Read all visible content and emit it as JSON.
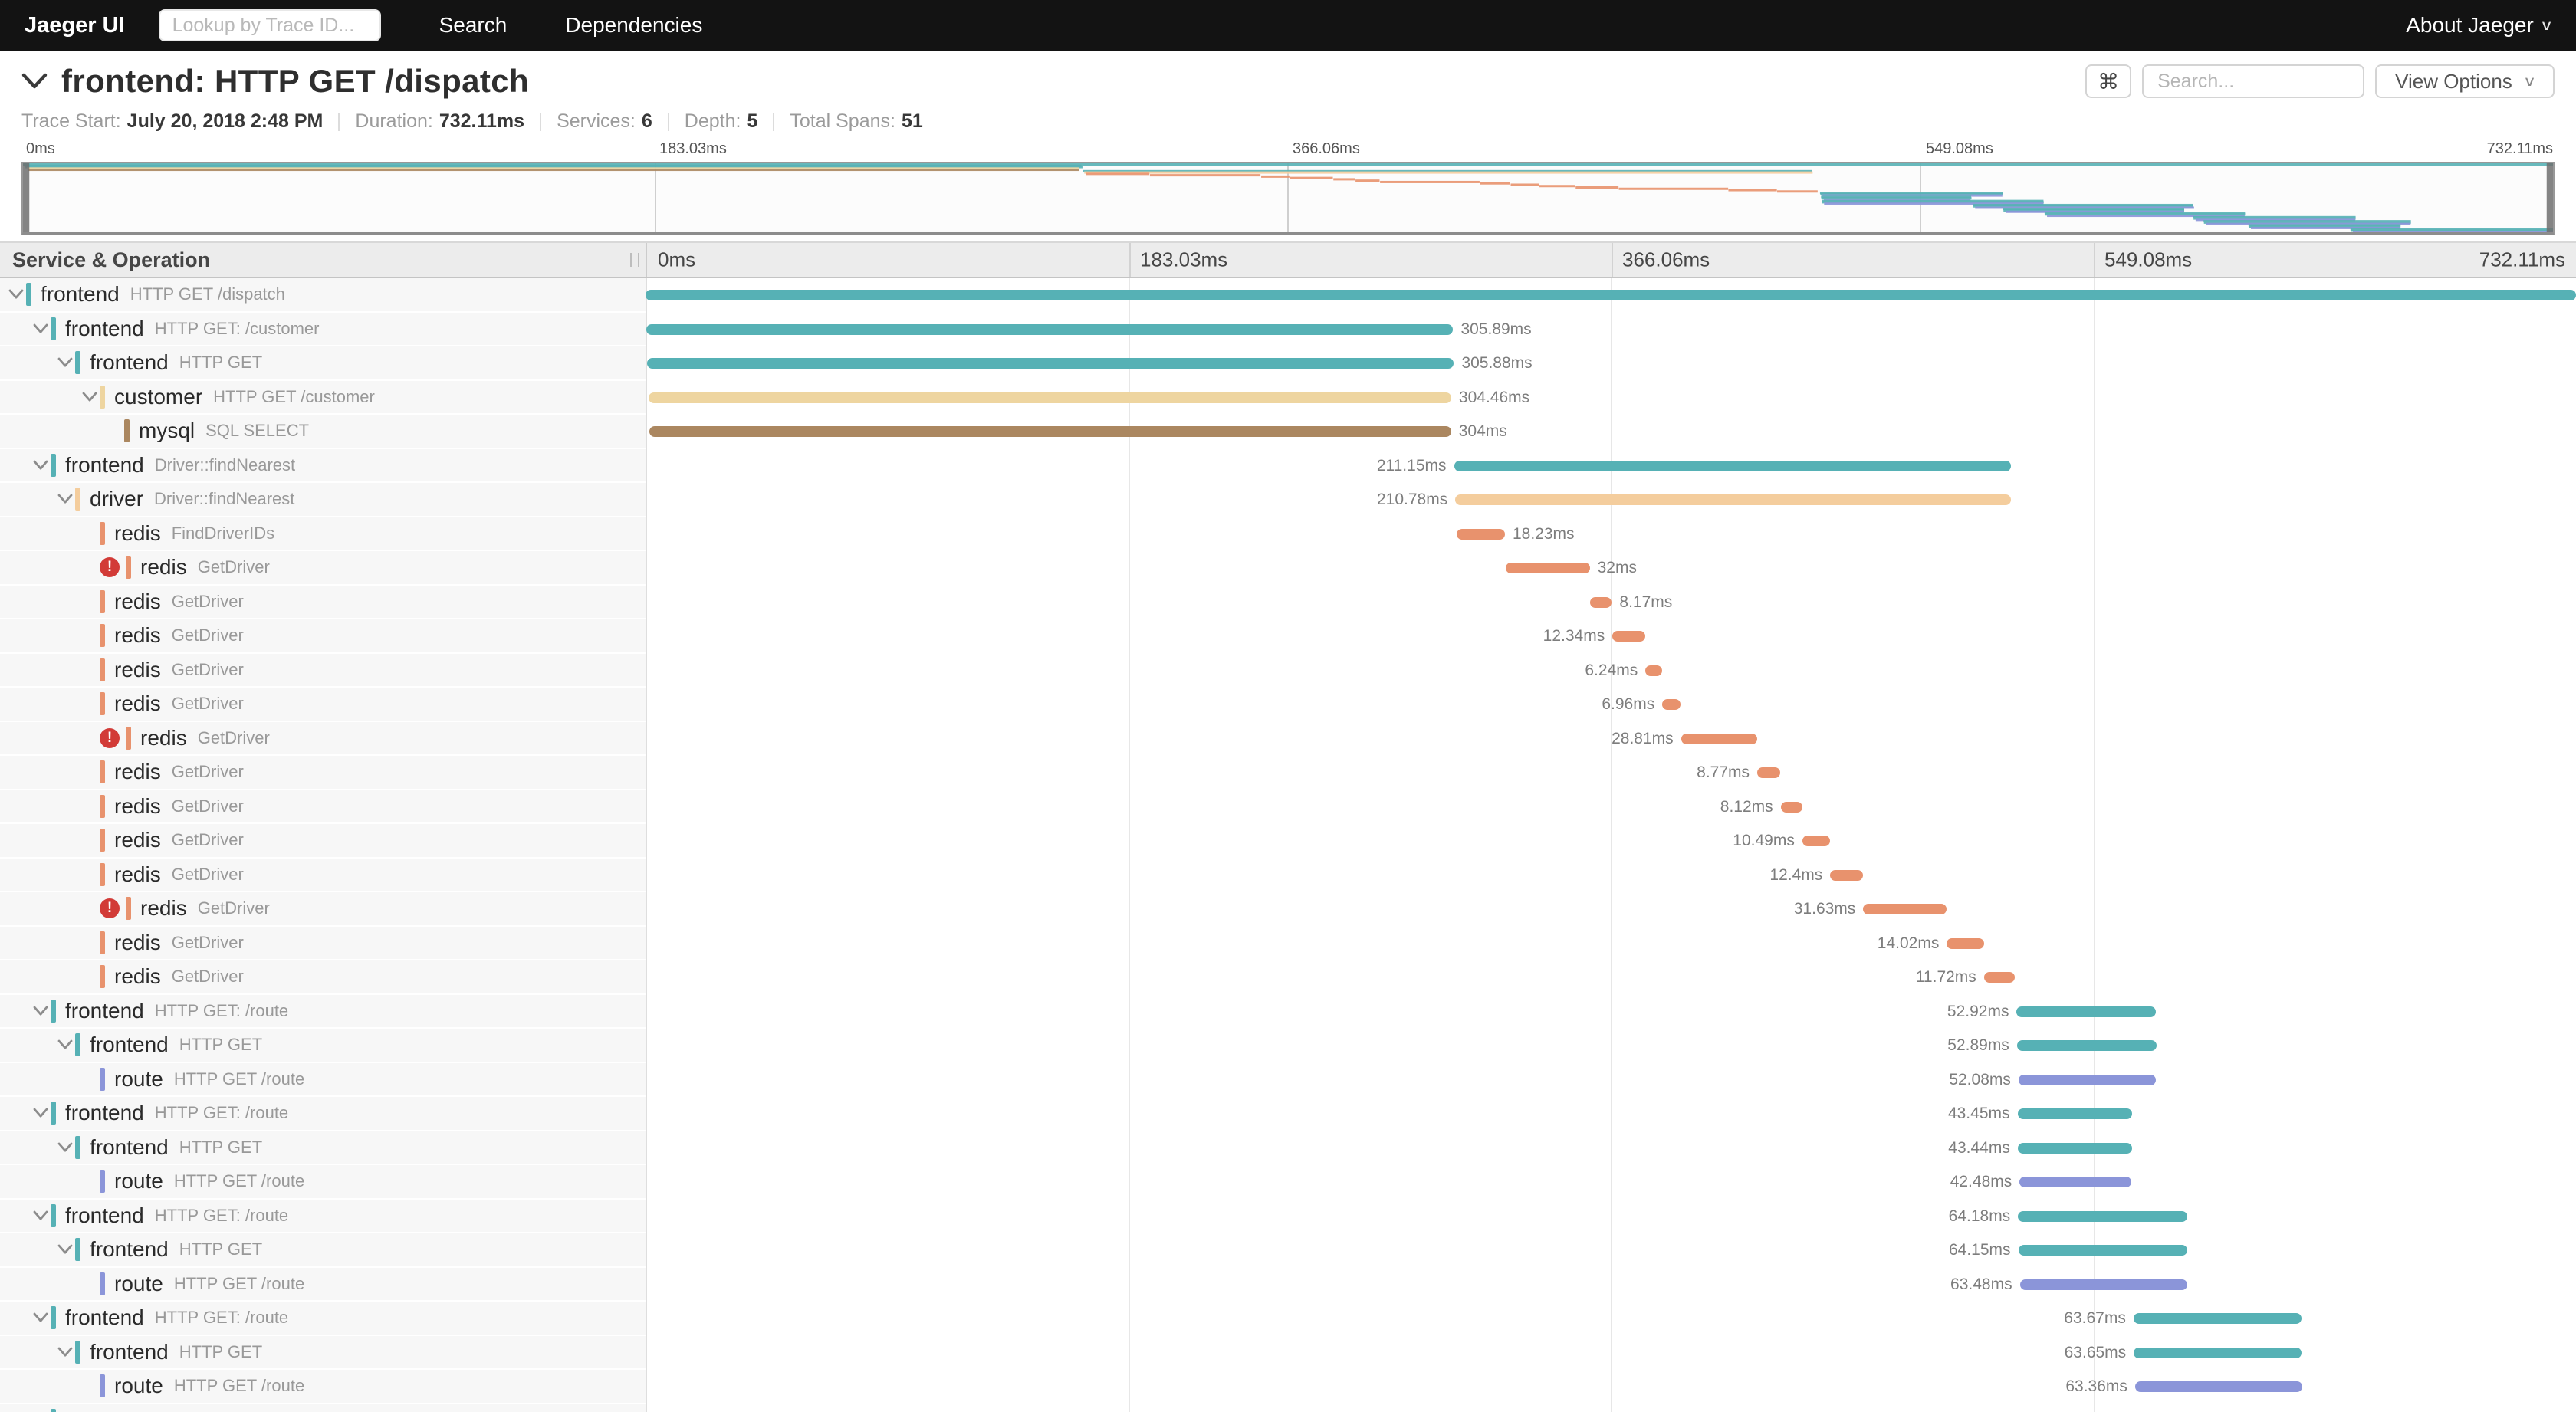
{
  "nav": {
    "brand": "Jaeger UI",
    "trace_lookup_placeholder": "Lookup by Trace ID...",
    "links": [
      "Search",
      "Dependencies"
    ],
    "about": "About Jaeger"
  },
  "header": {
    "title": "frontend: HTTP GET /dispatch",
    "shortcut_glyph": "⌘",
    "search_placeholder": "Search...",
    "view_options_label": "View Options",
    "summary": [
      {
        "label": "Trace Start:",
        "value": "July 20, 2018 2:48 PM"
      },
      {
        "label": "Duration:",
        "value": "732.11ms"
      },
      {
        "label": "Services:",
        "value": "6"
      },
      {
        "label": "Depth:",
        "value": "5"
      },
      {
        "label": "Total Spans:",
        "value": "51"
      }
    ]
  },
  "colors": {
    "frontend": "#56b1b5",
    "customer": "#eed5a0",
    "mysql": "#ab8760",
    "driver": "#f4cd9d",
    "redis": "#e8926d",
    "route": "#8b95d9",
    "error_red": "#d23b37",
    "nav_bg": "#131313",
    "header_bg": "#ececec",
    "name_col_bg": "#f7f7f7"
  },
  "chart_data": {
    "type": "gantt-trace",
    "title": "frontend: HTTP GET /dispatch",
    "total_duration_ms": 732.11,
    "axis_ticks": [
      "0ms",
      "183.03ms",
      "366.06ms",
      "549.08ms",
      "732.11ms"
    ],
    "column_header": "Service & Operation",
    "spans": [
      {
        "service": "frontend",
        "operation": "HTTP GET /dispatch",
        "depth": 0,
        "has_children": true,
        "error": false,
        "color": "#56b1b5",
        "start_ms": 0,
        "duration_ms": 732.11,
        "duration_label": "",
        "label_side": "none"
      },
      {
        "service": "frontend",
        "operation": "HTTP GET: /customer",
        "depth": 1,
        "has_children": true,
        "error": false,
        "color": "#56b1b5",
        "start_ms": 0.4,
        "duration_ms": 305.89,
        "duration_label": "305.89ms",
        "label_side": "right"
      },
      {
        "service": "frontend",
        "operation": "HTTP GET",
        "depth": 2,
        "has_children": true,
        "error": false,
        "color": "#56b1b5",
        "start_ms": 0.7,
        "duration_ms": 305.88,
        "duration_label": "305.88ms",
        "label_side": "right"
      },
      {
        "service": "customer",
        "operation": "HTTP GET /customer",
        "depth": 3,
        "has_children": true,
        "error": false,
        "color": "#eed5a0",
        "start_ms": 1.1,
        "duration_ms": 304.46,
        "duration_label": "304.46ms",
        "label_side": "right"
      },
      {
        "service": "mysql",
        "operation": "SQL SELECT",
        "depth": 4,
        "has_children": false,
        "error": false,
        "color": "#ab8760",
        "start_ms": 1.5,
        "duration_ms": 304,
        "duration_label": "304ms",
        "label_side": "right"
      },
      {
        "service": "frontend",
        "operation": "Driver::findNearest",
        "depth": 1,
        "has_children": true,
        "error": false,
        "color": "#56b1b5",
        "start_ms": 306.6,
        "duration_ms": 211.15,
        "duration_label": "211.15ms",
        "label_side": "left"
      },
      {
        "service": "driver",
        "operation": "Driver::findNearest",
        "depth": 2,
        "has_children": true,
        "error": false,
        "color": "#f4cd9d",
        "start_ms": 307.1,
        "duration_ms": 210.78,
        "duration_label": "210.78ms",
        "label_side": "left"
      },
      {
        "service": "redis",
        "operation": "FindDriverIDs",
        "depth": 3,
        "has_children": false,
        "error": false,
        "color": "#e8926d",
        "start_ms": 307.7,
        "duration_ms": 18.23,
        "duration_label": "18.23ms",
        "label_side": "right"
      },
      {
        "service": "redis",
        "operation": "GetDriver",
        "depth": 3,
        "has_children": false,
        "error": true,
        "color": "#e8926d",
        "start_ms": 326.1,
        "duration_ms": 32,
        "duration_label": "32ms",
        "label_side": "right"
      },
      {
        "service": "redis",
        "operation": "GetDriver",
        "depth": 3,
        "has_children": false,
        "error": false,
        "color": "#e8926d",
        "start_ms": 358.3,
        "duration_ms": 8.17,
        "duration_label": "8.17ms",
        "label_side": "right"
      },
      {
        "service": "redis",
        "operation": "GetDriver",
        "depth": 3,
        "has_children": false,
        "error": false,
        "color": "#e8926d",
        "start_ms": 366.7,
        "duration_ms": 12.34,
        "duration_label": "12.34ms",
        "label_side": "left"
      },
      {
        "service": "redis",
        "operation": "GetDriver",
        "depth": 3,
        "has_children": false,
        "error": false,
        "color": "#e8926d",
        "start_ms": 379.2,
        "duration_ms": 6.24,
        "duration_label": "6.24ms",
        "label_side": "left"
      },
      {
        "service": "redis",
        "operation": "GetDriver",
        "depth": 3,
        "has_children": false,
        "error": false,
        "color": "#e8926d",
        "start_ms": 385.6,
        "duration_ms": 6.96,
        "duration_label": "6.96ms",
        "label_side": "left"
      },
      {
        "service": "redis",
        "operation": "GetDriver",
        "depth": 3,
        "has_children": false,
        "error": true,
        "color": "#e8926d",
        "start_ms": 392.7,
        "duration_ms": 28.81,
        "duration_label": "28.81ms",
        "label_side": "left"
      },
      {
        "service": "redis",
        "operation": "GetDriver",
        "depth": 3,
        "has_children": false,
        "error": false,
        "color": "#e8926d",
        "start_ms": 421.6,
        "duration_ms": 8.77,
        "duration_label": "8.77ms",
        "label_side": "left"
      },
      {
        "service": "redis",
        "operation": "GetDriver",
        "depth": 3,
        "has_children": false,
        "error": false,
        "color": "#e8926d",
        "start_ms": 430.5,
        "duration_ms": 8.12,
        "duration_label": "8.12ms",
        "label_side": "left"
      },
      {
        "service": "redis",
        "operation": "GetDriver",
        "depth": 3,
        "has_children": false,
        "error": false,
        "color": "#e8926d",
        "start_ms": 438.7,
        "duration_ms": 10.49,
        "duration_label": "10.49ms",
        "label_side": "left"
      },
      {
        "service": "redis",
        "operation": "GetDriver",
        "depth": 3,
        "has_children": false,
        "error": false,
        "color": "#e8926d",
        "start_ms": 449.3,
        "duration_ms": 12.4,
        "duration_label": "12.4ms",
        "label_side": "left"
      },
      {
        "service": "redis",
        "operation": "GetDriver",
        "depth": 3,
        "has_children": false,
        "error": true,
        "color": "#e8926d",
        "start_ms": 461.8,
        "duration_ms": 31.63,
        "duration_label": "31.63ms",
        "label_side": "left"
      },
      {
        "service": "redis",
        "operation": "GetDriver",
        "depth": 3,
        "has_children": false,
        "error": false,
        "color": "#e8926d",
        "start_ms": 493.5,
        "duration_ms": 14.02,
        "duration_label": "14.02ms",
        "label_side": "left"
      },
      {
        "service": "redis",
        "operation": "GetDriver",
        "depth": 3,
        "has_children": false,
        "error": false,
        "color": "#e8926d",
        "start_ms": 507.6,
        "duration_ms": 11.72,
        "duration_label": "11.72ms",
        "label_side": "left"
      },
      {
        "service": "frontend",
        "operation": "HTTP GET: /route",
        "depth": 1,
        "has_children": true,
        "error": false,
        "color": "#56b1b5",
        "start_ms": 520.0,
        "duration_ms": 52.92,
        "duration_label": "52.92ms",
        "label_side": "left"
      },
      {
        "service": "frontend",
        "operation": "HTTP GET",
        "depth": 2,
        "has_children": true,
        "error": false,
        "color": "#56b1b5",
        "start_ms": 520.1,
        "duration_ms": 52.89,
        "duration_label": "52.89ms",
        "label_side": "left"
      },
      {
        "service": "route",
        "operation": "HTTP GET /route",
        "depth": 3,
        "has_children": false,
        "error": false,
        "color": "#8b95d9",
        "start_ms": 520.7,
        "duration_ms": 52.08,
        "duration_label": "52.08ms",
        "label_side": "left"
      },
      {
        "service": "frontend",
        "operation": "HTTP GET: /route",
        "depth": 1,
        "has_children": true,
        "error": false,
        "color": "#56b1b5",
        "start_ms": 520.3,
        "duration_ms": 43.45,
        "duration_label": "43.45ms",
        "label_side": "left"
      },
      {
        "service": "frontend",
        "operation": "HTTP GET",
        "depth": 2,
        "has_children": true,
        "error": false,
        "color": "#56b1b5",
        "start_ms": 520.4,
        "duration_ms": 43.44,
        "duration_label": "43.44ms",
        "label_side": "left"
      },
      {
        "service": "route",
        "operation": "HTTP GET /route",
        "depth": 3,
        "has_children": false,
        "error": false,
        "color": "#8b95d9",
        "start_ms": 521.1,
        "duration_ms": 42.48,
        "duration_label": "42.48ms",
        "label_side": "left"
      },
      {
        "service": "frontend",
        "operation": "HTTP GET: /route",
        "depth": 1,
        "has_children": true,
        "error": false,
        "color": "#56b1b5",
        "start_ms": 520.5,
        "duration_ms": 64.18,
        "duration_label": "64.18ms",
        "label_side": "left"
      },
      {
        "service": "frontend",
        "operation": "HTTP GET",
        "depth": 2,
        "has_children": true,
        "error": false,
        "color": "#56b1b5",
        "start_ms": 520.6,
        "duration_ms": 64.15,
        "duration_label": "64.15ms",
        "label_side": "left"
      },
      {
        "service": "route",
        "operation": "HTTP GET /route",
        "depth": 3,
        "has_children": false,
        "error": false,
        "color": "#8b95d9",
        "start_ms": 521.2,
        "duration_ms": 63.48,
        "duration_label": "63.48ms",
        "label_side": "left"
      },
      {
        "service": "frontend",
        "operation": "HTTP GET: /route",
        "depth": 1,
        "has_children": true,
        "error": false,
        "color": "#56b1b5",
        "start_ms": 564.3,
        "duration_ms": 63.67,
        "duration_label": "63.67ms",
        "label_side": "left"
      },
      {
        "service": "frontend",
        "operation": "HTTP GET",
        "depth": 2,
        "has_children": true,
        "error": false,
        "color": "#56b1b5",
        "start_ms": 564.4,
        "duration_ms": 63.65,
        "duration_label": "63.65ms",
        "label_side": "left"
      },
      {
        "service": "route",
        "operation": "HTTP GET /route",
        "depth": 3,
        "has_children": false,
        "error": false,
        "color": "#8b95d9",
        "start_ms": 564.9,
        "duration_ms": 63.36,
        "duration_label": "63.36ms",
        "label_side": "left"
      },
      {
        "service": "frontend",
        "operation": "HTTP GET: /route",
        "depth": 1,
        "has_children": true,
        "error": false,
        "color": "#56b1b5",
        "start_ms": 573.0,
        "duration_ms": 52.4,
        "duration_label": "",
        "label_side": "none"
      }
    ],
    "minimap_offscreen_spans": [
      {
        "start_ms": 573.1,
        "duration_ms": 52.3,
        "color": "#56b1b5"
      },
      {
        "start_ms": 573.7,
        "duration_ms": 51.6,
        "color": "#8b95d9"
      },
      {
        "start_ms": 585.0,
        "duration_ms": 58.0,
        "color": "#56b1b5"
      },
      {
        "start_ms": 585.1,
        "duration_ms": 57.9,
        "color": "#56b1b5"
      },
      {
        "start_ms": 585.7,
        "duration_ms": 57.2,
        "color": "#8b95d9"
      },
      {
        "start_ms": 628.0,
        "duration_ms": 47.0,
        "color": "#56b1b5"
      },
      {
        "start_ms": 628.1,
        "duration_ms": 46.9,
        "color": "#56b1b5"
      },
      {
        "start_ms": 628.7,
        "duration_ms": 46.2,
        "color": "#8b95d9"
      },
      {
        "start_ms": 631.0,
        "duration_ms": 60.0,
        "color": "#56b1b5"
      },
      {
        "start_ms": 631.1,
        "duration_ms": 59.9,
        "color": "#56b1b5"
      },
      {
        "start_ms": 631.7,
        "duration_ms": 59.2,
        "color": "#8b95d9"
      },
      {
        "start_ms": 644.0,
        "duration_ms": 44.0,
        "color": "#56b1b5"
      },
      {
        "start_ms": 644.1,
        "duration_ms": 43.9,
        "color": "#56b1b5"
      },
      {
        "start_ms": 644.7,
        "duration_ms": 43.2,
        "color": "#8b95d9"
      },
      {
        "start_ms": 673.5,
        "duration_ms": 58.6,
        "color": "#56b1b5"
      },
      {
        "start_ms": 673.6,
        "duration_ms": 58.5,
        "color": "#56b1b5"
      },
      {
        "start_ms": 674.2,
        "duration_ms": 57.9,
        "color": "#8b95d9"
      }
    ]
  }
}
